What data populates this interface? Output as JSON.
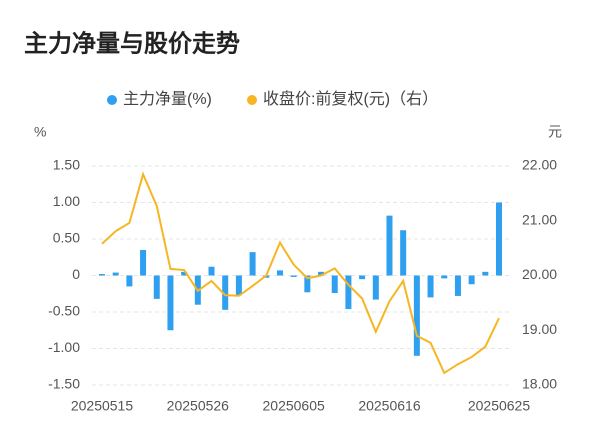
{
  "chart_data": {
    "type": "bar_line",
    "title": "主力净量与股价走势",
    "y_label": "%",
    "y2_label": "元",
    "categories": [
      "20250515",
      null,
      null,
      null,
      null,
      null,
      null,
      "20250526",
      null,
      null,
      null,
      null,
      null,
      null,
      "20250605",
      null,
      null,
      null,
      null,
      null,
      null,
      "20250616",
      null,
      null,
      null,
      null,
      null,
      null,
      null,
      "20250625"
    ],
    "series": [
      {
        "name": "主力净量(%)",
        "color": "#2f9ff0",
        "type": "bar",
        "values": [
          0.02,
          0.04,
          -0.15,
          0.35,
          -0.32,
          -0.75,
          0.05,
          -0.4,
          0.12,
          -0.47,
          -0.27,
          0.32,
          -0.03,
          0.07,
          -0.02,
          -0.23,
          0.05,
          -0.24,
          -0.46,
          -0.05,
          -0.33,
          0.82,
          0.62,
          -1.1,
          -0.3,
          -0.04,
          -0.28,
          -0.12,
          0.05,
          1.0
        ]
      },
      {
        "name": "收盘价:前复权(元)（右）",
        "color": "#f6b622",
        "type": "line",
        "axis": "y2",
        "values": [
          20.58,
          20.81,
          20.96,
          21.85,
          21.27,
          20.12,
          20.1,
          19.72,
          19.9,
          19.64,
          19.63,
          19.81,
          20.0,
          20.6,
          20.2,
          19.95,
          20.0,
          20.13,
          19.83,
          19.58,
          18.97,
          19.53,
          19.9,
          18.9,
          18.77,
          18.22,
          18.38,
          18.51,
          18.7,
          19.22
        ]
      }
    ],
    "ylim": [
      -1.5,
      1.5
    ],
    "yticks": [
      {
        "value": 1.5,
        "label": "1.50"
      },
      {
        "value": 1,
        "label": "1.00"
      },
      {
        "value": 0.5,
        "label": "0.50"
      },
      0,
      {
        "value": -0.5,
        "label": "-0.50"
      },
      {
        "value": -1,
        "label": "-1.00"
      },
      {
        "value": -1.5,
        "label": "-1.50"
      }
    ],
    "y2lim": [
      18,
      22
    ],
    "y2ticks": [
      {
        "value": 22,
        "label": "22.00"
      },
      {
        "value": 21,
        "label": "21.00"
      },
      {
        "value": 20,
        "label": "20.00"
      },
      {
        "value": 19,
        "label": "19.00"
      },
      {
        "value": 18,
        "label": "18.00"
      }
    ],
    "grid": true
  }
}
